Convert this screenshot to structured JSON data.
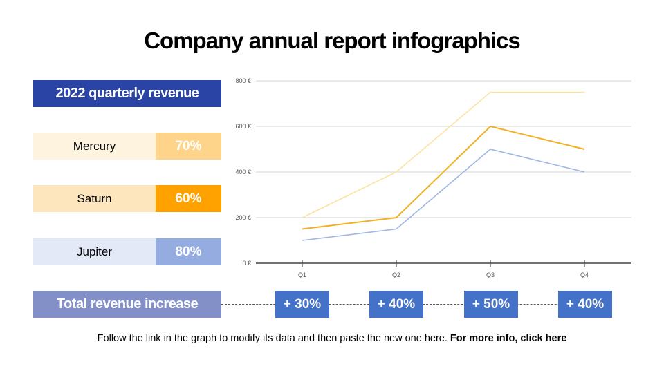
{
  "title": "Company annual report infographics",
  "panel": {
    "header": "2022 quarterly revenue",
    "rows": [
      {
        "name": "Mercury",
        "percent": "70%",
        "name_bg": "#fef3de",
        "pct_bg": "#fdd489"
      },
      {
        "name": "Saturn",
        "percent": "60%",
        "name_bg": "#fde5bd",
        "pct_bg": "#ffa200"
      },
      {
        "name": "Jupiter",
        "percent": "80%",
        "name_bg": "#e3e9f7",
        "pct_bg": "#94acdf"
      }
    ],
    "total_label": "Total revenue increase",
    "increases": [
      "+ 30%",
      "+ 40%",
      "+ 50%",
      "+ 40%"
    ]
  },
  "footer": {
    "text": "Follow the link in the graph to modify its data and then paste the new one here. ",
    "link": "For more info, click here"
  },
  "chart_data": {
    "type": "line",
    "categories": [
      "Q1",
      "Q2",
      "Q3",
      "Q4"
    ],
    "ylim": [
      0,
      800
    ],
    "yticks": [
      "0 €",
      "200 €",
      "400 €",
      "600 €",
      "800 €"
    ],
    "grid": true,
    "series": [
      {
        "values": [
          200,
          400,
          750,
          750
        ],
        "color": "#fde3a0"
      },
      {
        "values": [
          150,
          200,
          600,
          500
        ],
        "color": "#f2b024"
      },
      {
        "values": [
          100,
          150,
          500,
          400
        ],
        "color": "#9fb5e2"
      }
    ]
  }
}
